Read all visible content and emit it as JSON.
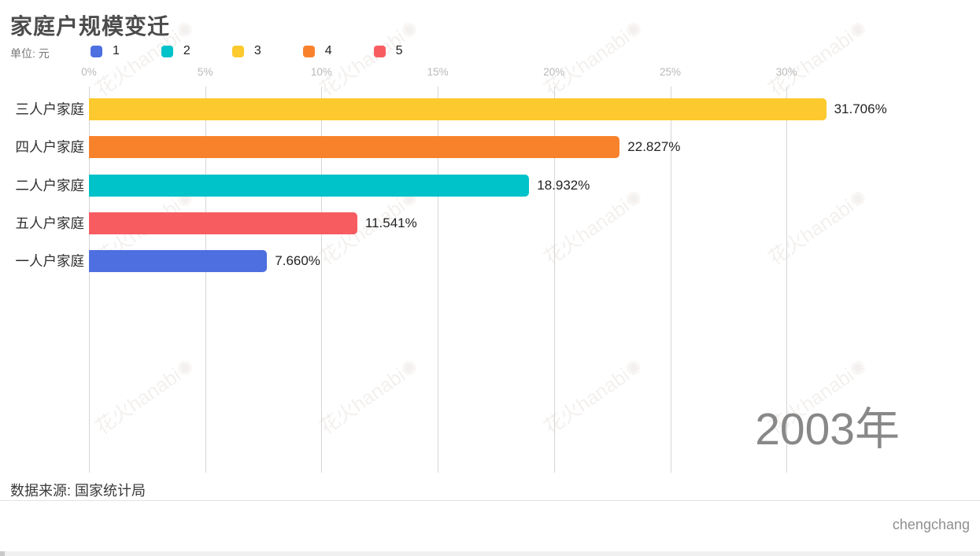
{
  "title": "家庭户规模变迁",
  "unit_label": "单位: 元",
  "legend": [
    {
      "label": "1",
      "color": "#4D6FE0"
    },
    {
      "label": "2",
      "color": "#00C2C9"
    },
    {
      "label": "3",
      "color": "#FCCA2E"
    },
    {
      "label": "4",
      "color": "#F8822C"
    },
    {
      "label": "5",
      "color": "#F75C61"
    }
  ],
  "chart_data": {
    "type": "bar",
    "orientation": "horizontal",
    "title": "家庭户规模变迁",
    "categories": [
      "三人户家庭",
      "四人户家庭",
      "二人户家庭",
      "五人户家庭",
      "一人户家庭"
    ],
    "values": [
      31.706,
      22.827,
      18.932,
      11.541,
      7.66
    ],
    "value_labels": [
      "31.706%",
      "22.827%",
      "18.932%",
      "11.541%",
      "7.660%"
    ],
    "bar_colors": [
      "#FCCA2E",
      "#F8822C",
      "#00C2C9",
      "#F75C61",
      "#4D6FE0"
    ],
    "x_ticks": [
      "0%",
      "5%",
      "10%",
      "15%",
      "20%",
      "25%",
      "30%"
    ],
    "x_tick_values": [
      0,
      5,
      10,
      15,
      20,
      25,
      30
    ],
    "xlim": [
      0,
      34
    ],
    "grid": "vertical-only",
    "legend_position": "top",
    "legend_labels": [
      "1",
      "2",
      "3",
      "4",
      "5"
    ]
  },
  "year_label": "2003年",
  "source_note": "数据来源: 国家统计局",
  "credit": "chengchang",
  "watermark_text": "花火hanabi",
  "watermark_flower": "✺"
}
